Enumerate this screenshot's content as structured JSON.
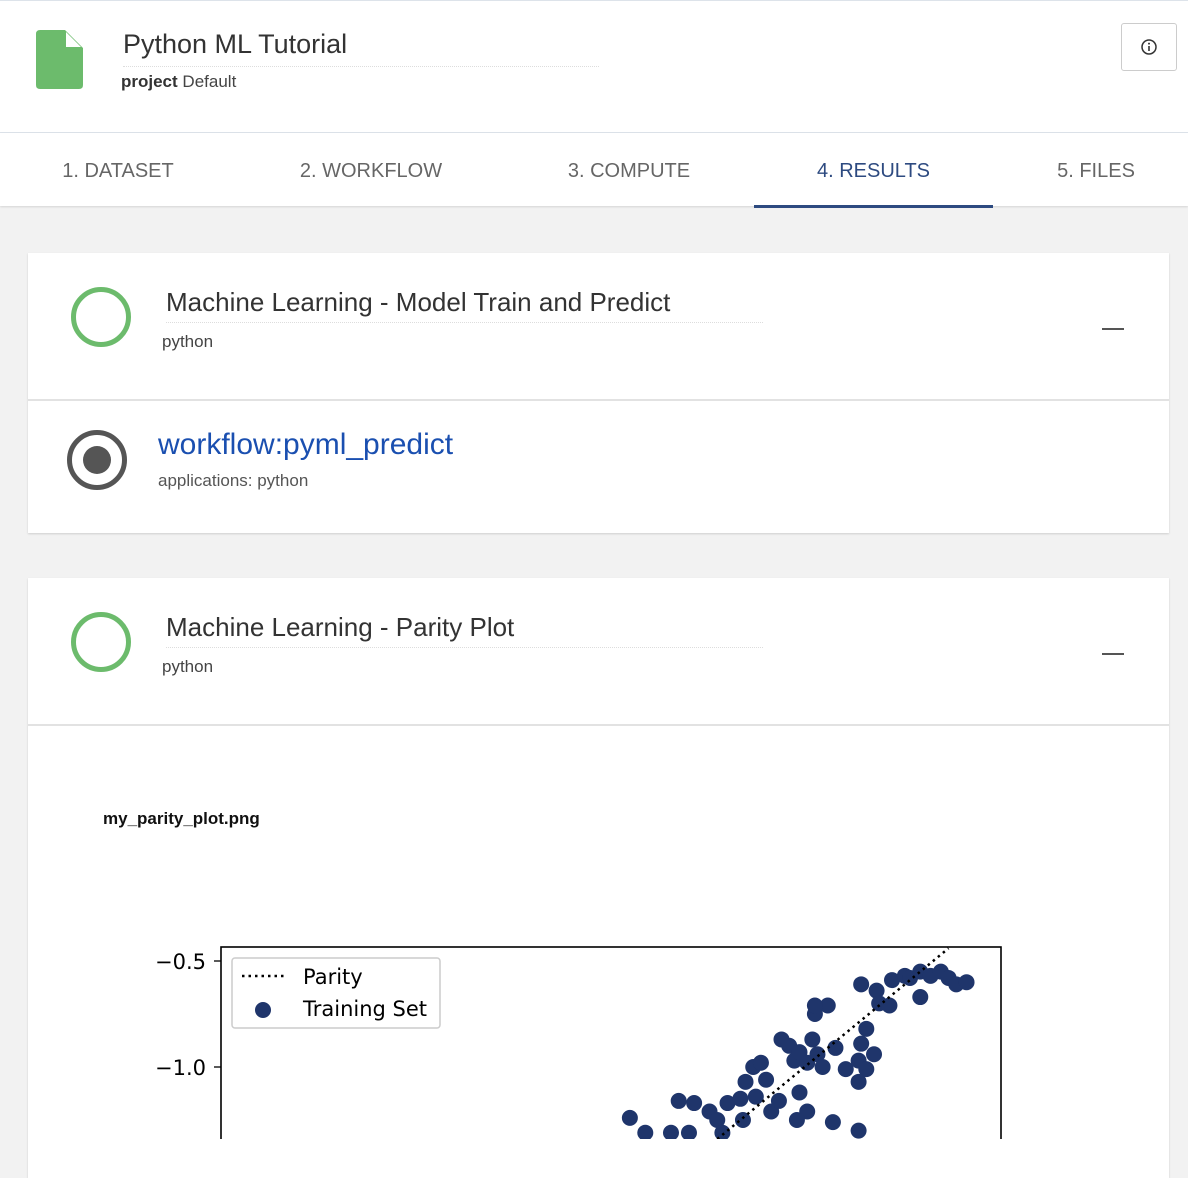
{
  "header": {
    "title": "Python ML Tutorial",
    "project_label": "project",
    "project_value": "Default",
    "info_icon": "info-icon",
    "file_icon": "file-icon",
    "accent": "#6cbb6c"
  },
  "tabs": [
    {
      "label": "1. DATASET"
    },
    {
      "label": "2. WORKFLOW"
    },
    {
      "label": "3. COMPUTE"
    },
    {
      "label": "4. RESULTS",
      "active": true
    },
    {
      "label": "5. FILES"
    }
  ],
  "units": [
    {
      "title": "Machine Learning - Model Train and Predict",
      "subtitle": "python",
      "status": "success",
      "workflow": {
        "link": "workflow:pyml_predict",
        "applications": "applications: python"
      }
    },
    {
      "title": "Machine Learning - Parity Plot",
      "subtitle": "python",
      "status": "success",
      "image_name": "my_parity_plot.png"
    }
  ],
  "chart_data": {
    "type": "scatter",
    "title": "",
    "xlabel": "",
    "ylabel": "",
    "yticks": [
      -0.5,
      -1.0
    ],
    "ytick_labels": [
      "−0.5",
      "−1.0"
    ],
    "ylim": [
      -1.34,
      -0.434
    ],
    "xlim": [
      -3.27,
      -0.24
    ],
    "legend": {
      "placement": "top-left",
      "entries": [
        "Parity",
        "Training Set"
      ]
    },
    "grid": false,
    "series": [
      {
        "name": "Parity",
        "kind": "line",
        "style": "dotted",
        "color": "#000000",
        "x": [
          -1.34,
          -0.44
        ],
        "y": [
          -1.34,
          -0.44
        ]
      },
      {
        "name": "Training Set",
        "kind": "scatter",
        "color": "#1f356b",
        "points": [
          [
            -1.68,
            -1.24
          ],
          [
            -1.62,
            -1.31
          ],
          [
            -1.52,
            -1.31
          ],
          [
            -1.49,
            -1.16
          ],
          [
            -1.43,
            -1.17
          ],
          [
            -1.37,
            -1.21
          ],
          [
            -1.34,
            -1.25
          ],
          [
            -1.32,
            -1.31
          ],
          [
            -1.3,
            -1.17
          ],
          [
            -1.24,
            -1.25
          ],
          [
            -1.23,
            -1.07
          ],
          [
            -1.2,
            -1.0
          ],
          [
            -1.19,
            -1.14
          ],
          [
            -1.15,
            -1.06
          ],
          [
            -1.13,
            -1.21
          ],
          [
            -1.17,
            -0.98
          ],
          [
            -1.09,
            -0.87
          ],
          [
            -1.06,
            -0.9
          ],
          [
            -1.04,
            -0.97
          ],
          [
            -1.02,
            -0.93
          ],
          [
            -0.99,
            -0.98
          ],
          [
            -0.97,
            -0.87
          ],
          [
            -0.95,
            -0.94
          ],
          [
            -0.93,
            -1.0
          ],
          [
            -0.91,
            -0.71
          ],
          [
            -0.96,
            -0.75
          ],
          [
            -0.96,
            -0.71
          ],
          [
            -0.88,
            -0.91
          ],
          [
            -0.84,
            -1.01
          ],
          [
            -0.79,
            -0.97
          ],
          [
            -0.78,
            -0.89
          ],
          [
            -0.73,
            -0.94
          ],
          [
            -0.76,
            -1.01
          ],
          [
            -0.79,
            -1.07
          ],
          [
            -0.76,
            -0.82
          ],
          [
            -0.78,
            -0.61
          ],
          [
            -0.72,
            -0.64
          ],
          [
            -0.71,
            -0.7
          ],
          [
            -0.67,
            -0.71
          ],
          [
            -0.66,
            -0.59
          ],
          [
            -0.61,
            -0.57
          ],
          [
            -0.59,
            -0.58
          ],
          [
            -0.55,
            -0.55
          ],
          [
            -0.51,
            -0.57
          ],
          [
            -0.47,
            -0.55
          ],
          [
            -0.44,
            -0.58
          ],
          [
            -0.41,
            -0.61
          ],
          [
            -0.37,
            -0.6
          ],
          [
            -0.55,
            -0.67
          ],
          [
            -1.02,
            -1.12
          ],
          [
            -0.99,
            -1.21
          ],
          [
            -1.03,
            -1.25
          ],
          [
            -0.89,
            -1.26
          ],
          [
            -0.79,
            -1.3
          ],
          [
            -1.1,
            -1.16
          ],
          [
            -1.45,
            -1.31
          ],
          [
            -1.25,
            -1.15
          ]
        ]
      }
    ]
  }
}
